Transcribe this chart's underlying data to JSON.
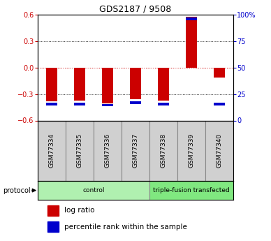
{
  "title": "GDS2187 / 9508",
  "samples": [
    "GSM77334",
    "GSM77335",
    "GSM77336",
    "GSM77337",
    "GSM77338",
    "GSM77339",
    "GSM77340"
  ],
  "log_ratio": [
    -0.385,
    -0.375,
    -0.405,
    -0.355,
    -0.375,
    0.575,
    -0.115
  ],
  "percentile_rank": [
    15.5,
    15.5,
    14.5,
    17.0,
    15.5,
    96.0,
    15.5
  ],
  "groups": [
    {
      "label": "control",
      "start": 0,
      "end": 4,
      "color": "#b0f0b0"
    },
    {
      "label": "triple-fusion transfected",
      "start": 4,
      "end": 7,
      "color": "#80e880"
    }
  ],
  "ylim": [
    -0.6,
    0.6
  ],
  "yticks_left": [
    -0.6,
    -0.3,
    0.0,
    0.3,
    0.6
  ],
  "yticks_right": [
    0,
    25,
    50,
    75,
    100
  ],
  "red_color": "#cc0000",
  "blue_color": "#0000cc",
  "protocol_label": "protocol",
  "legend_log_ratio": "log ratio",
  "legend_percentile": "percentile rank within the sample",
  "tick_label_fontsize": 7,
  "bar_width": 0.4,
  "blue_bar_height": 0.03,
  "sample_box_color": "#d0d0d0",
  "title_fontsize": 9
}
